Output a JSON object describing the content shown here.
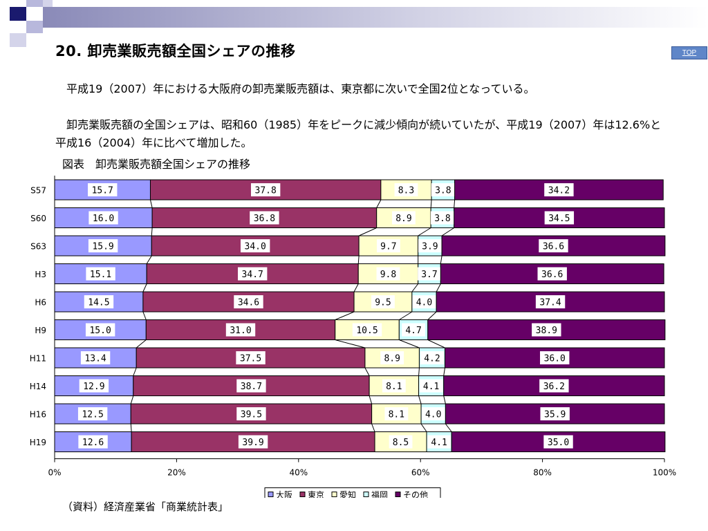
{
  "title": "20. 卸売業販売額全国シェアの推移",
  "top_link": "TOP",
  "paragraphs": [
    "　平成19（2007）年における大阪府の卸売業販売額は、東京都に次いで全国2位となっている。",
    "　卸売業販売額の全国シェアは、昭和60（1985）年をピークに減少傾向が続いていたが、平成19（2007）年は12.6%と平成16（2004）年に比べて増加した。"
  ],
  "figure_caption": "図表　卸売業販売額全国シェアの推移",
  "source": "（資料）経済産業省「商業統計表」",
  "colors": {
    "osaka": "#9999ff",
    "tokyo": "#993366",
    "aichi": "#ffffcc",
    "fukuoka": "#ccffff",
    "other": "#660066",
    "deco_dark": "#1a1a6e",
    "deco_light": "#b8b8dc"
  },
  "chart_data": {
    "type": "bar",
    "orientation": "horizontal",
    "stacked": "percent",
    "categories": [
      "S57",
      "S60",
      "S63",
      "H3",
      "H6",
      "H9",
      "H11",
      "H14",
      "H16",
      "H19"
    ],
    "series": [
      {
        "name": "大阪",
        "color": "#9999ff",
        "values": [
          15.7,
          16.0,
          15.9,
          15.1,
          14.5,
          15.0,
          13.4,
          12.9,
          12.5,
          12.6
        ]
      },
      {
        "name": "東京",
        "color": "#993366",
        "values": [
          37.8,
          36.8,
          34.0,
          34.7,
          34.6,
          31.0,
          37.5,
          38.7,
          39.5,
          39.9
        ]
      },
      {
        "name": "愛知",
        "color": "#ffffcc",
        "values": [
          8.3,
          8.9,
          9.7,
          9.8,
          9.5,
          10.5,
          8.9,
          8.1,
          8.1,
          8.5
        ]
      },
      {
        "name": "福岡",
        "color": "#ccffff",
        "values": [
          3.8,
          3.8,
          3.9,
          3.7,
          4.0,
          4.7,
          4.2,
          4.1,
          4.0,
          4.1
        ]
      },
      {
        "name": "その他",
        "color": "#660066",
        "values": [
          34.2,
          34.5,
          36.6,
          36.6,
          37.4,
          38.9,
          36.0,
          36.2,
          35.9,
          35.0
        ]
      }
    ],
    "x_ticks": [
      "0%",
      "20%",
      "40%",
      "60%",
      "80%",
      "100%"
    ],
    "xlim": [
      0,
      100
    ],
    "grid": false,
    "legend": "bottom"
  }
}
